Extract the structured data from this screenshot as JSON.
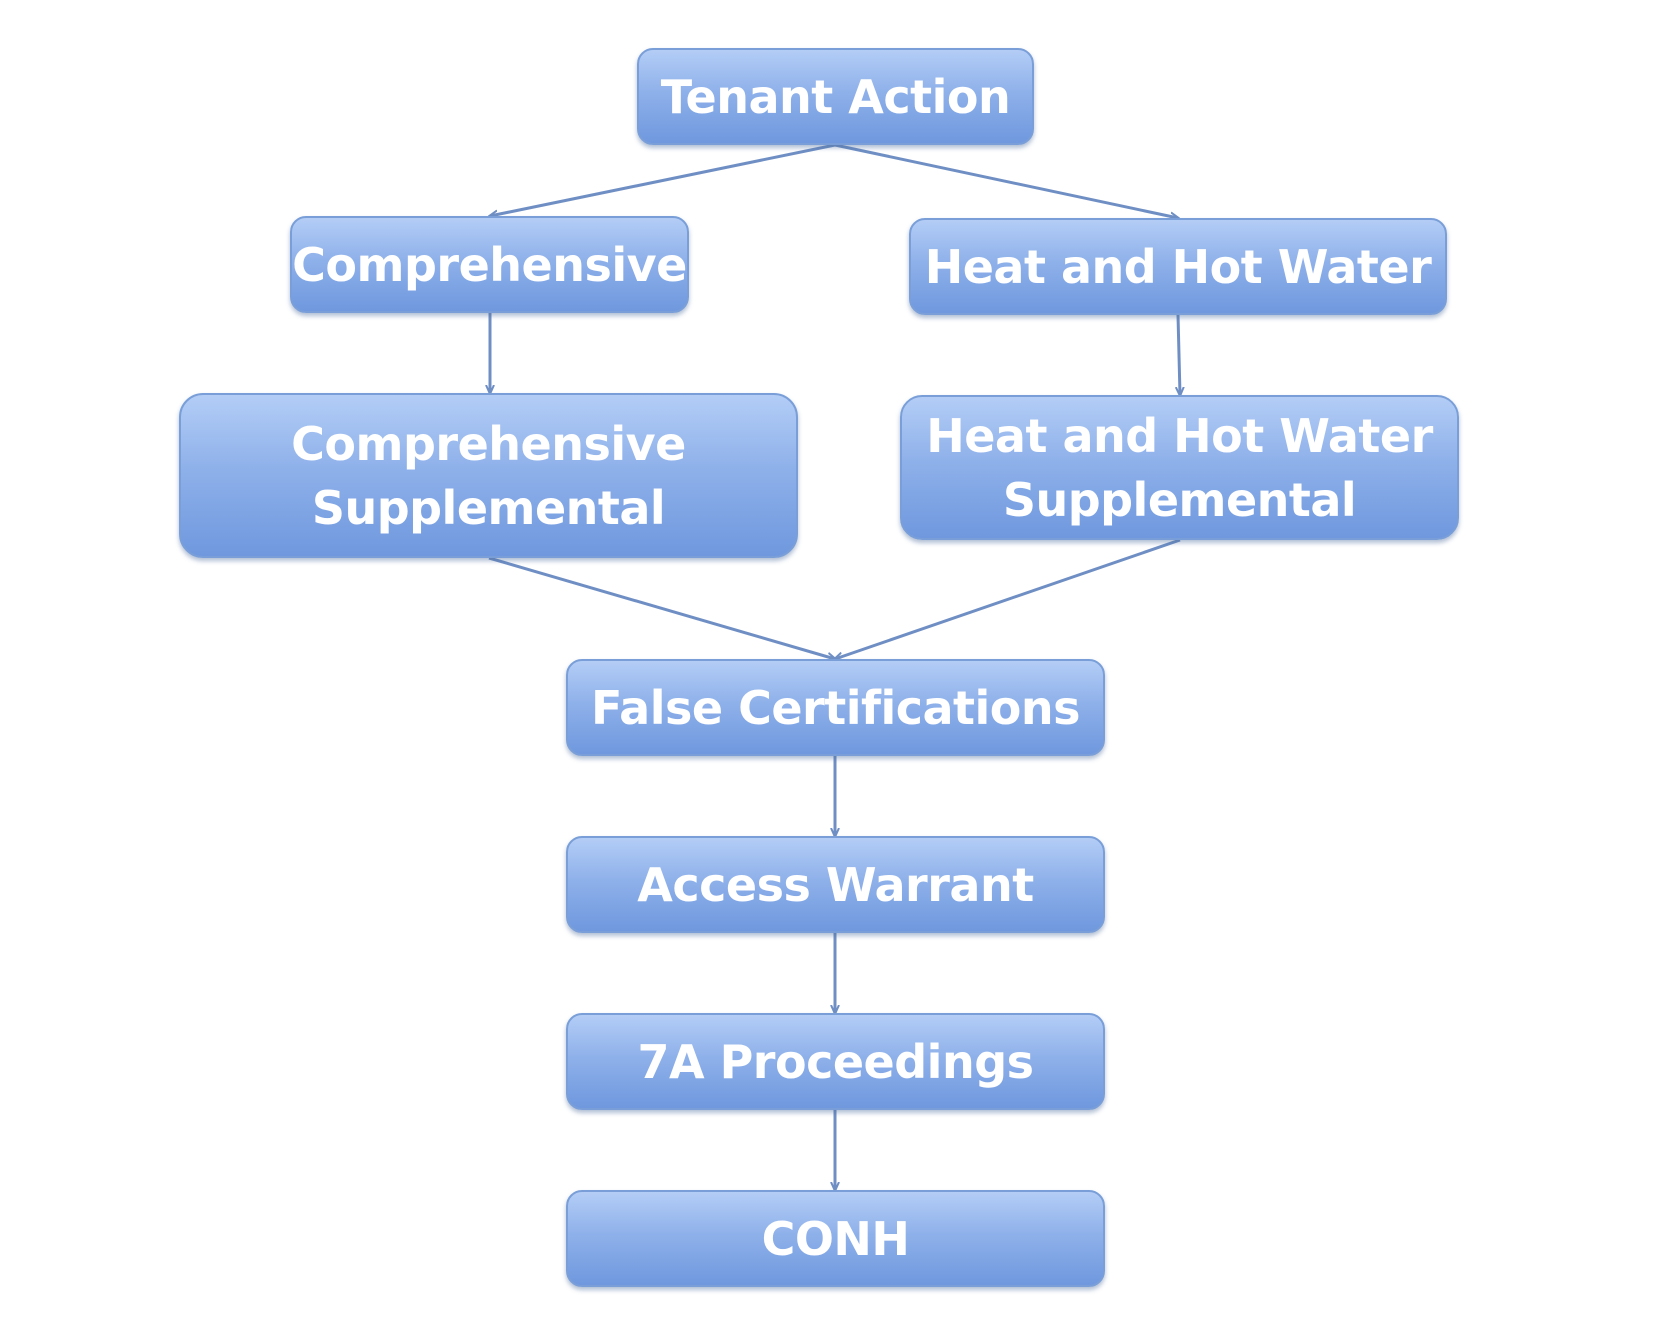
{
  "nodes": {
    "tenant_action": "Tenant Action",
    "comprehensive": "Comprehensive",
    "heat_hot_water": "Heat and Hot Water",
    "comprehensive_supplemental": [
      "Comprehensive",
      "Supplemental"
    ],
    "heat_hot_water_supplemental": [
      "Heat and Hot Water",
      "Supplemental"
    ],
    "false_certifications": "False Certifications",
    "access_warrant": "Access Warrant",
    "proceedings_7a": "7A Proceedings",
    "conh": "CONH"
  },
  "edges": [
    [
      "tenant_action",
      "comprehensive"
    ],
    [
      "tenant_action",
      "heat_hot_water"
    ],
    [
      "comprehensive",
      "comprehensive_supplemental"
    ],
    [
      "heat_hot_water",
      "heat_hot_water_supplemental"
    ],
    [
      "comprehensive_supplemental",
      "false_certifications"
    ],
    [
      "heat_hot_water_supplemental",
      "false_certifications"
    ],
    [
      "false_certifications",
      "access_warrant"
    ],
    [
      "access_warrant",
      "proceedings_7a"
    ],
    [
      "proceedings_7a",
      "conh"
    ]
  ],
  "colors": {
    "box_top": "#b3cdf6",
    "box_bottom": "#6f98de",
    "box_border": "#7a9fd8",
    "connector": "#6f8fc4",
    "text": "#ffffff"
  }
}
